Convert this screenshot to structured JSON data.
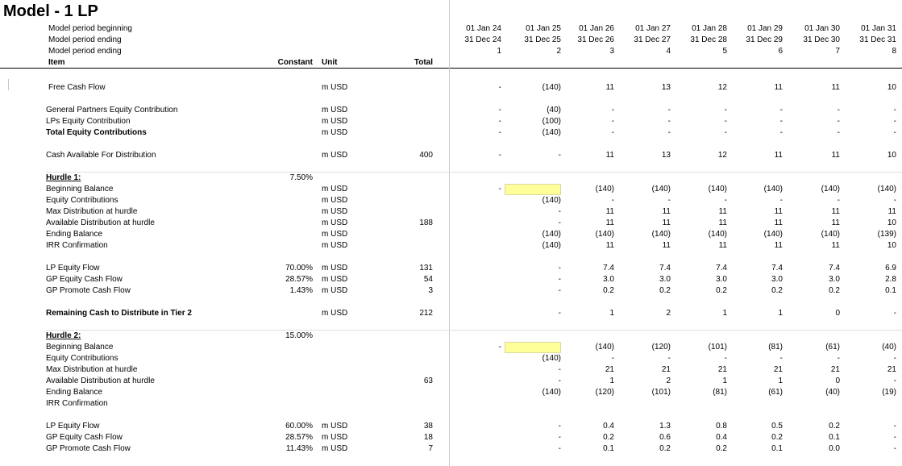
{
  "title": "Model - 1 LP",
  "header": {
    "rows": [
      "Model period beginning",
      "Model period ending",
      "Model period ending"
    ],
    "item_label": "Item",
    "constant_label": "Constant",
    "unit_label": "Unit",
    "total_label": "Total",
    "period_begin": [
      "01 Jan 24",
      "01 Jan 25",
      "01 Jan 26",
      "01 Jan 27",
      "01 Jan 28",
      "01 Jan 29",
      "01 Jan 30",
      "01 Jan 31"
    ],
    "period_end": [
      "31 Dec 24",
      "31 Dec 25",
      "31 Dec 26",
      "31 Dec 27",
      "31 Dec 28",
      "31 Dec 29",
      "31 Dec 30",
      "31 Dec 31"
    ],
    "period_num": [
      "1",
      "2",
      "3",
      "4",
      "5",
      "6",
      "7",
      "8"
    ]
  },
  "rows": [
    {
      "label": "Free Cash Flow",
      "constant": "",
      "unit": "m USD",
      "total": "",
      "values": [
        "-",
        "(140)",
        "11",
        "13",
        "12",
        "11",
        "11",
        "10"
      ]
    },
    {
      "label": "General Partners Equity Contribution",
      "constant": "",
      "unit": "m USD",
      "total": "",
      "values": [
        "-",
        "(40)",
        "-",
        "-",
        "-",
        "-",
        "-",
        "-"
      ]
    },
    {
      "label": "LPs Equity Contribution",
      "constant": "",
      "unit": "m USD",
      "total": "",
      "values": [
        "-",
        "(100)",
        "-",
        "-",
        "-",
        "-",
        "-",
        "-"
      ]
    },
    {
      "label": "Total Equity Contributions",
      "constant": "",
      "unit": "m USD",
      "total": "",
      "values": [
        "-",
        "(140)",
        "-",
        "-",
        "-",
        "-",
        "-",
        "-"
      ],
      "bold": true
    },
    {
      "label": "Cash Available For Distribution",
      "constant": "",
      "unit": "m USD",
      "total": "400",
      "values": [
        "-",
        "-",
        "11",
        "13",
        "12",
        "11",
        "11",
        "10"
      ]
    },
    {
      "label": "Hurdle 1:",
      "constant": "7.50%",
      "unit": "",
      "total": "",
      "values": [
        "",
        "",
        "",
        "",
        "",
        "",
        "",
        ""
      ],
      "bold": true,
      "underline": true
    },
    {
      "label": "Beginning Balance",
      "constant": "",
      "unit": "m USD",
      "total": "",
      "values": [
        "-",
        "",
        "(140)",
        "(140)",
        "(140)",
        "(140)",
        "(140)",
        "(140)"
      ]
    },
    {
      "label": "Equity Contributions",
      "constant": "",
      "unit": "m USD",
      "total": "",
      "values": [
        "",
        "(140)",
        "-",
        "-",
        "-",
        "-",
        "-",
        "-"
      ]
    },
    {
      "label": "Max Distribution at hurdle",
      "constant": "",
      "unit": "m USD",
      "total": "",
      "values": [
        "",
        "-",
        "11",
        "11",
        "11",
        "11",
        "11",
        "11"
      ]
    },
    {
      "label": "Available Distribution at hurdle",
      "constant": "",
      "unit": "m USD",
      "total": "188",
      "values": [
        "",
        "-",
        "11",
        "11",
        "11",
        "11",
        "11",
        "10"
      ]
    },
    {
      "label": "Ending Balance",
      "constant": "",
      "unit": "m USD",
      "total": "",
      "values": [
        "",
        "(140)",
        "(140)",
        "(140)",
        "(140)",
        "(140)",
        "(140)",
        "(139)"
      ]
    },
    {
      "label": "IRR Confirmation",
      "constant": "",
      "unit": "m USD",
      "total": "",
      "values": [
        "",
        "(140)",
        "11",
        "11",
        "11",
        "11",
        "11",
        "10"
      ]
    },
    {
      "label": "LP Equity Flow",
      "constant": "70.00%",
      "unit": "m USD",
      "total": "131",
      "values": [
        "",
        "-",
        "7.4",
        "7.4",
        "7.4",
        "7.4",
        "7.4",
        "6.9"
      ]
    },
    {
      "label": "GP Equity Cash Flow",
      "constant": "28.57%",
      "unit": "m USD",
      "total": "54",
      "values": [
        "",
        "-",
        "3.0",
        "3.0",
        "3.0",
        "3.0",
        "3.0",
        "2.8"
      ]
    },
    {
      "label": "GP Promote Cash Flow",
      "constant": "1.43%",
      "unit": "m USD",
      "total": "3",
      "values": [
        "",
        "-",
        "0.2",
        "0.2",
        "0.2",
        "0.2",
        "0.2",
        "0.1"
      ]
    },
    {
      "label": "Remaining Cash to Distribute in Tier 2",
      "constant": "",
      "unit": "m USD",
      "total": "212",
      "values": [
        "",
        "-",
        "1",
        "2",
        "1",
        "1",
        "0",
        "-"
      ],
      "bold": true
    },
    {
      "label": "Hurdle 2:",
      "constant": "15.00%",
      "unit": "",
      "total": "",
      "values": [
        "",
        "",
        "",
        "",
        "",
        "",
        "",
        ""
      ],
      "bold": true,
      "underline": true
    },
    {
      "label": "Beginning Balance",
      "constant": "",
      "unit": "",
      "total": "",
      "values": [
        "-",
        "",
        "(140)",
        "(120)",
        "(101)",
        "(81)",
        "(61)",
        "(40)"
      ]
    },
    {
      "label": "Equity Contributions",
      "constant": "",
      "unit": "",
      "total": "",
      "values": [
        "",
        "(140)",
        "-",
        "-",
        "-",
        "-",
        "-",
        "-"
      ]
    },
    {
      "label": "Max Distribution at hurdle",
      "constant": "",
      "unit": "",
      "total": "",
      "values": [
        "",
        "-",
        "21",
        "21",
        "21",
        "21",
        "21",
        "21"
      ]
    },
    {
      "label": "Available Distribution at hurdle",
      "constant": "",
      "unit": "",
      "total": "63",
      "values": [
        "",
        "-",
        "1",
        "2",
        "1",
        "1",
        "0",
        "-"
      ]
    },
    {
      "label": "Ending Balance",
      "constant": "",
      "unit": "",
      "total": "",
      "values": [
        "",
        "(140)",
        "(120)",
        "(101)",
        "(81)",
        "(61)",
        "(40)",
        "(19)"
      ]
    },
    {
      "label": "IRR Confirmation",
      "constant": "",
      "unit": "",
      "total": "",
      "values": [
        "",
        "",
        "",
        "",
        "",
        "",
        "",
        ""
      ]
    },
    {
      "label": "LP Equity Flow",
      "constant": "60.00%",
      "unit": "m USD",
      "total": "38",
      "values": [
        "",
        "-",
        "0.4",
        "1.3",
        "0.8",
        "0.5",
        "0.2",
        "-"
      ]
    },
    {
      "label": "GP Equity Cash Flow",
      "constant": "28.57%",
      "unit": "m USD",
      "total": "18",
      "values": [
        "",
        "-",
        "0.2",
        "0.6",
        "0.4",
        "0.2",
        "0.1",
        "-"
      ]
    },
    {
      "label": "GP Promote Cash Flow",
      "constant": "11.43%",
      "unit": "m USD",
      "total": "7",
      "values": [
        "",
        "-",
        "0.1",
        "0.2",
        "0.2",
        "0.1",
        "0.0",
        "-"
      ]
    }
  ]
}
